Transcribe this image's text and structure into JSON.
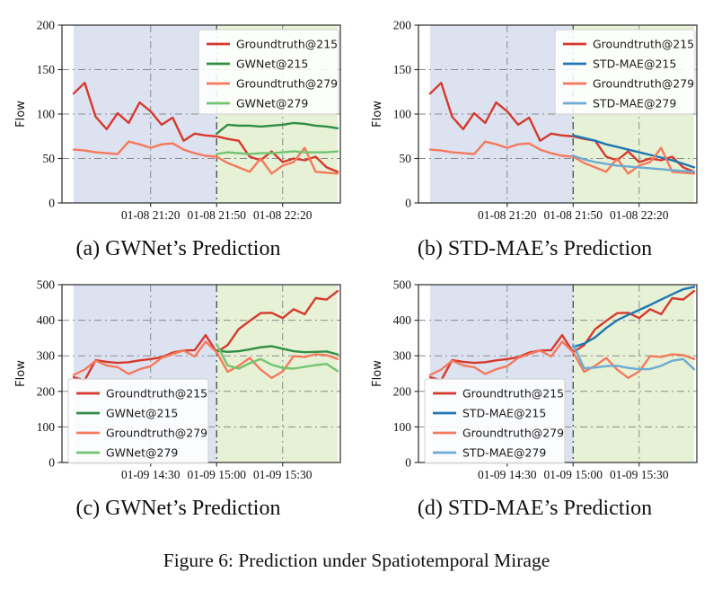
{
  "figure_caption": "Figure 6: Prediction under Spatiotemporal Mirage",
  "colors": {
    "groundtruth_215": "#d6392c",
    "gwnet_215": "#2f8e46",
    "groundtruth_279": "#f5795d",
    "gwnet_279": "#72c472",
    "stdmae_215": "#1f77b4",
    "stdmae_279": "#6cabd4",
    "bg_input": "#dce2f0",
    "bg_forecast": "#e7f1d5",
    "grid": "#8a8a8a",
    "boundary": "#3f3f3f",
    "axis": "#2b2b2b",
    "text": "#111111",
    "legend_border": "#d0d0d0"
  },
  "chart_data": {
    "type": "line",
    "grid": "on",
    "shared": {
      "ylabel": "Flow",
      "n_points": 25,
      "boundary_index": 13,
      "regions": [
        {
          "name": "history-window",
          "color_key": "bg_input"
        },
        {
          "name": "forecast-window",
          "color_key": "bg_forecast"
        }
      ]
    },
    "charts": [
      {
        "id": "a",
        "caption": "(a) GWNet’s Prediction",
        "ylabel": "Flow",
        "ylim": [
          0,
          200
        ],
        "yticks": [
          0,
          50,
          100,
          150,
          200
        ],
        "n_points": 25,
        "boundary_index": 13,
        "legend_pos": "ne",
        "xticks": [
          {
            "index": 7,
            "label": "01-08 21:20"
          },
          {
            "index": 13,
            "label": "01-08 21:50"
          },
          {
            "index": 19,
            "label": "01-08 22:20"
          }
        ],
        "series": [
          {
            "name": "Groundtruth@215",
            "color_key": "groundtruth_215",
            "x_start": 0,
            "values": [
              123,
              135,
              97,
              83,
              101,
              90,
              113,
              103,
              88,
              96,
              70,
              78,
              76,
              75,
              72,
              70,
              52,
              48,
              58,
              46,
              50,
              48,
              52,
              40,
              35
            ]
          },
          {
            "name": "GWNet@215",
            "color_key": "gwnet_215",
            "x_start": 13,
            "values": [
              78,
              88,
              87,
              87,
              86,
              87,
              88,
              90,
              89,
              87,
              86,
              84
            ]
          },
          {
            "name": "Groundtruth@279",
            "color_key": "groundtruth_279",
            "x_start": 0,
            "values": [
              60,
              59,
              57,
              56,
              55,
              69,
              66,
              62,
              66,
              67,
              60,
              56,
              53,
              52,
              45,
              40,
              35,
              50,
              33,
              42,
              46,
              62,
              35,
              34,
              33
            ]
          },
          {
            "name": "GWNet@279",
            "color_key": "gwnet_279",
            "x_start": 13,
            "values": [
              55,
              57,
              56,
              55,
              56,
              56,
              57,
              58,
              57,
              57,
              57,
              58
            ]
          }
        ]
      },
      {
        "id": "b",
        "caption": "(b) STD-MAE’s Prediction",
        "ylabel": "Flow",
        "ylim": [
          0,
          200
        ],
        "yticks": [
          0,
          50,
          100,
          150,
          200
        ],
        "n_points": 25,
        "boundary_index": 13,
        "legend_pos": "ne",
        "xticks": [
          {
            "index": 7,
            "label": "01-08 21:20"
          },
          {
            "index": 13,
            "label": "01-08 21:50"
          },
          {
            "index": 19,
            "label": "01-08 22:20"
          }
        ],
        "series": [
          {
            "name": "Groundtruth@215",
            "color_key": "groundtruth_215",
            "x_start": 0,
            "values": [
              123,
              135,
              97,
              83,
              101,
              90,
              113,
              103,
              88,
              96,
              70,
              78,
              76,
              75,
              72,
              70,
              52,
              48,
              58,
              46,
              50,
              48,
              52,
              40,
              35
            ]
          },
          {
            "name": "STD-MAE@215",
            "color_key": "stdmae_215",
            "x_start": 13,
            "values": [
              76,
              73,
              70,
              66,
              63,
              60,
              57,
              54,
              51,
              48,
              44,
              40
            ]
          },
          {
            "name": "Groundtruth@279",
            "color_key": "groundtruth_279",
            "x_start": 0,
            "values": [
              60,
              59,
              57,
              56,
              55,
              69,
              66,
              62,
              66,
              67,
              60,
              56,
              53,
              52,
              45,
              40,
              35,
              50,
              33,
              42,
              46,
              62,
              35,
              34,
              33
            ]
          },
          {
            "name": "STD-MAE@279",
            "color_key": "stdmae_279",
            "x_start": 13,
            "values": [
              53,
              49,
              46,
              44,
              42,
              41,
              40,
              39,
              38,
              37,
              36,
              35
            ]
          }
        ]
      },
      {
        "id": "c",
        "caption": "(c) GWNet’s Prediction",
        "ylabel": "Flow",
        "ylim": [
          0,
          500
        ],
        "yticks": [
          0,
          100,
          200,
          300,
          400,
          500
        ],
        "n_points": 25,
        "boundary_index": 13,
        "legend_pos": "sw",
        "xticks": [
          {
            "index": 7,
            "label": "01-09 14:30"
          },
          {
            "index": 13,
            "label": "01-09 15:00"
          },
          {
            "index": 19,
            "label": "01-09 15:30"
          }
        ],
        "series": [
          {
            "name": "Groundtruth@215",
            "color_key": "groundtruth_215",
            "x_start": 0,
            "values": [
              240,
              231,
              288,
              283,
              280,
              282,
              287,
              291,
              296,
              309,
              315,
              316,
              358,
              310,
              330,
              375,
              398,
              420,
              421,
              406,
              431,
              417,
              462,
              458,
              482
            ]
          },
          {
            "name": "GWNet@215",
            "color_key": "gwnet_215",
            "x_start": 13,
            "values": [
              315,
              311,
              313,
              318,
              324,
              327,
              320,
              313,
              310,
              311,
              312,
              304
            ]
          },
          {
            "name": "Groundtruth@279",
            "color_key": "groundtruth_279",
            "x_start": 0,
            "values": [
              246,
              261,
              286,
              273,
              268,
              249,
              262,
              271,
              294,
              305,
              315,
              298,
              340,
              310,
              255,
              272,
              294,
              261,
              238,
              256,
              299,
              297,
              304,
              302,
              291
            ]
          },
          {
            "name": "GWNet@279",
            "color_key": "gwnet_279",
            "x_start": 13,
            "values": [
              332,
              273,
              264,
              279,
              291,
              275,
              266,
              264,
              269,
              274,
              277,
              257
            ]
          }
        ]
      },
      {
        "id": "d",
        "caption": "(d) STD-MAE’s Prediction",
        "ylabel": "Flow",
        "ylim": [
          0,
          500
        ],
        "yticks": [
          0,
          100,
          200,
          300,
          400,
          500
        ],
        "n_points": 25,
        "boundary_index": 13,
        "legend_pos": "sw",
        "xticks": [
          {
            "index": 7,
            "label": "01-09 14:30"
          },
          {
            "index": 13,
            "label": "01-09 15:00"
          },
          {
            "index": 19,
            "label": "01-09 15:30"
          }
        ],
        "series": [
          {
            "name": "Groundtruth@215",
            "color_key": "groundtruth_215",
            "x_start": 0,
            "values": [
              240,
              231,
              288,
              283,
              280,
              282,
              287,
              291,
              296,
              309,
              315,
              316,
              358,
              310,
              330,
              375,
              398,
              420,
              421,
              406,
              431,
              417,
              462,
              458,
              482
            ]
          },
          {
            "name": "STD-MAE@215",
            "color_key": "stdmae_215",
            "x_start": 13,
            "values": [
              325,
              334,
              352,
              378,
              400,
              415,
              429,
              443,
              458,
              473,
              487,
              494
            ]
          },
          {
            "name": "Groundtruth@279",
            "color_key": "groundtruth_279",
            "x_start": 0,
            "values": [
              246,
              261,
              286,
              273,
              268,
              249,
              262,
              271,
              294,
              305,
              315,
              298,
              340,
              310,
              255,
              272,
              294,
              261,
              238,
              256,
              299,
              297,
              304,
              302,
              291
            ]
          },
          {
            "name": "STD-MAE@279",
            "color_key": "stdmae_279",
            "x_start": 13,
            "values": [
              332,
              265,
              267,
              271,
              272,
              266,
              262,
              263,
              272,
              286,
              291,
              262
            ]
          }
        ]
      }
    ]
  }
}
